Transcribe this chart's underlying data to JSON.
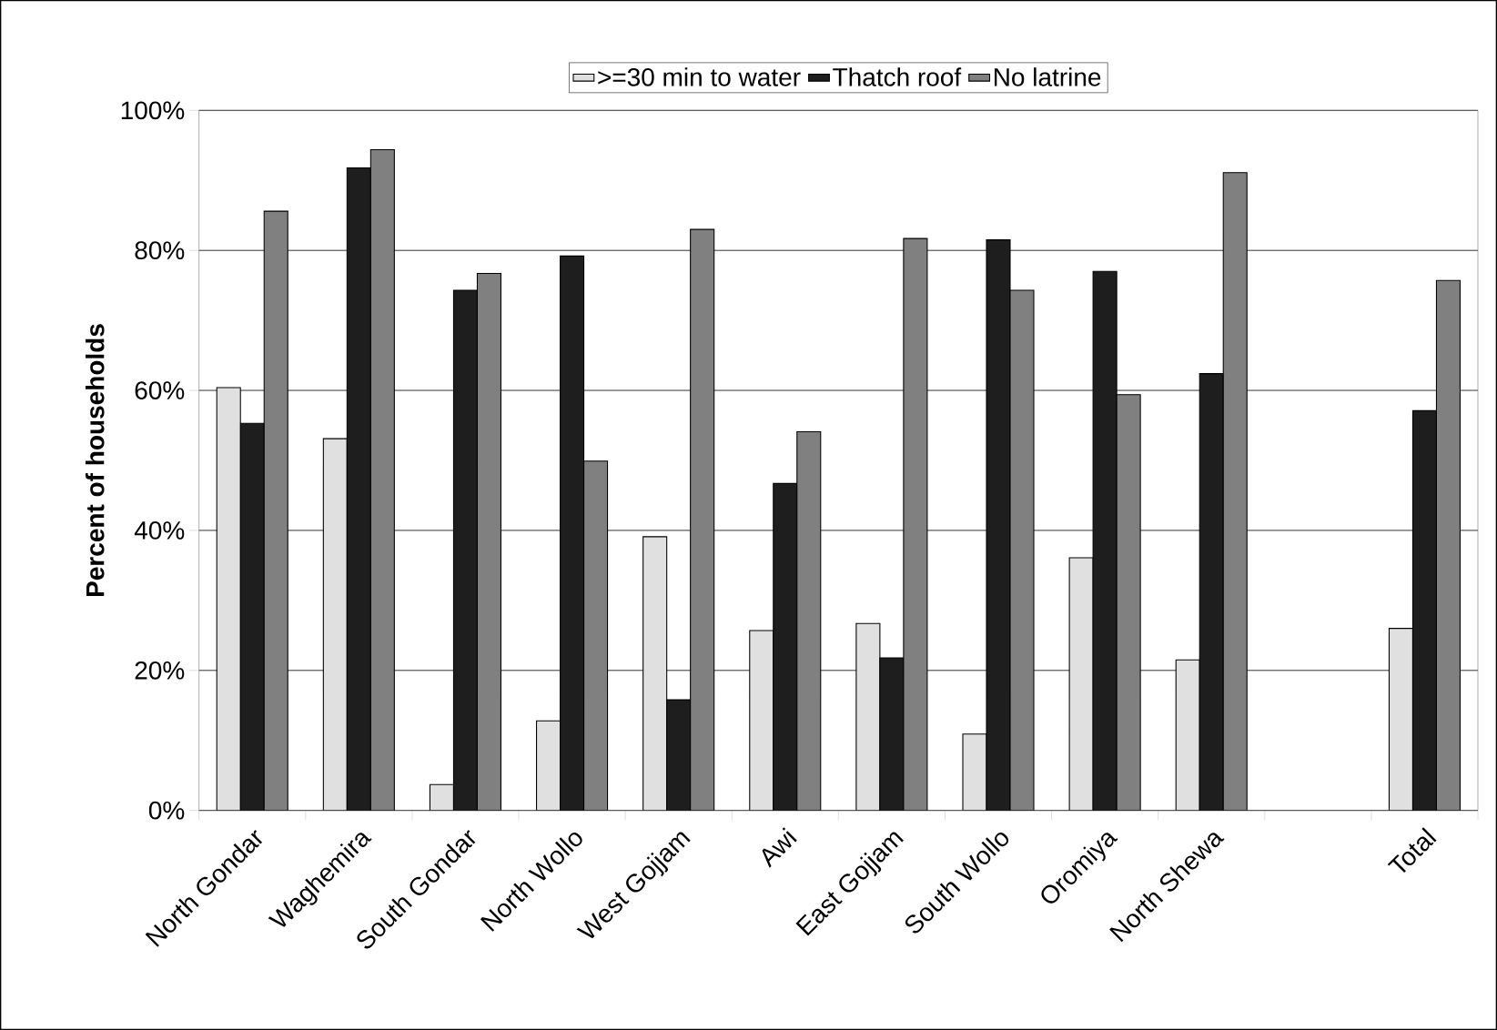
{
  "chart_data": {
    "type": "bar",
    "ylabel": "Percent of households",
    "categories": [
      "North Gondar",
      "Waghemira",
      "South Gondar",
      "North Wollo",
      "West Gojjam",
      "Awi",
      "East Gojjam",
      "South Wollo",
      "Oromiya",
      "North Shewa",
      null,
      "Total"
    ],
    "series": [
      {
        "name": ">=30 min to water",
        "color": "#e0e0e0",
        "values": [
          60.4,
          53.1,
          3.7,
          12.8,
          39.1,
          25.7,
          26.7,
          10.9,
          36.1,
          21.5,
          null,
          26.0
        ]
      },
      {
        "name": "Thatch roof",
        "color": "#1e1e1e",
        "values": [
          55.3,
          91.8,
          74.3,
          79.2,
          15.8,
          46.7,
          21.8,
          81.5,
          77.0,
          62.4,
          null,
          57.1
        ]
      },
      {
        "name": "No latrine",
        "color": "#808080",
        "values": [
          85.6,
          94.4,
          76.7,
          49.9,
          83.0,
          54.1,
          81.7,
          74.3,
          59.4,
          91.1,
          null,
          75.7
        ]
      }
    ],
    "ylim": [
      0,
      100
    ],
    "yticks": [
      {
        "value": 0,
        "label": "0%"
      },
      {
        "value": 20,
        "label": "20%"
      },
      {
        "value": 40,
        "label": "40%"
      },
      {
        "value": 60,
        "label": "60%"
      },
      {
        "value": 80,
        "label": "80%"
      },
      {
        "value": 100,
        "label": "100%"
      }
    ],
    "grid": "y",
    "legend": "top"
  }
}
